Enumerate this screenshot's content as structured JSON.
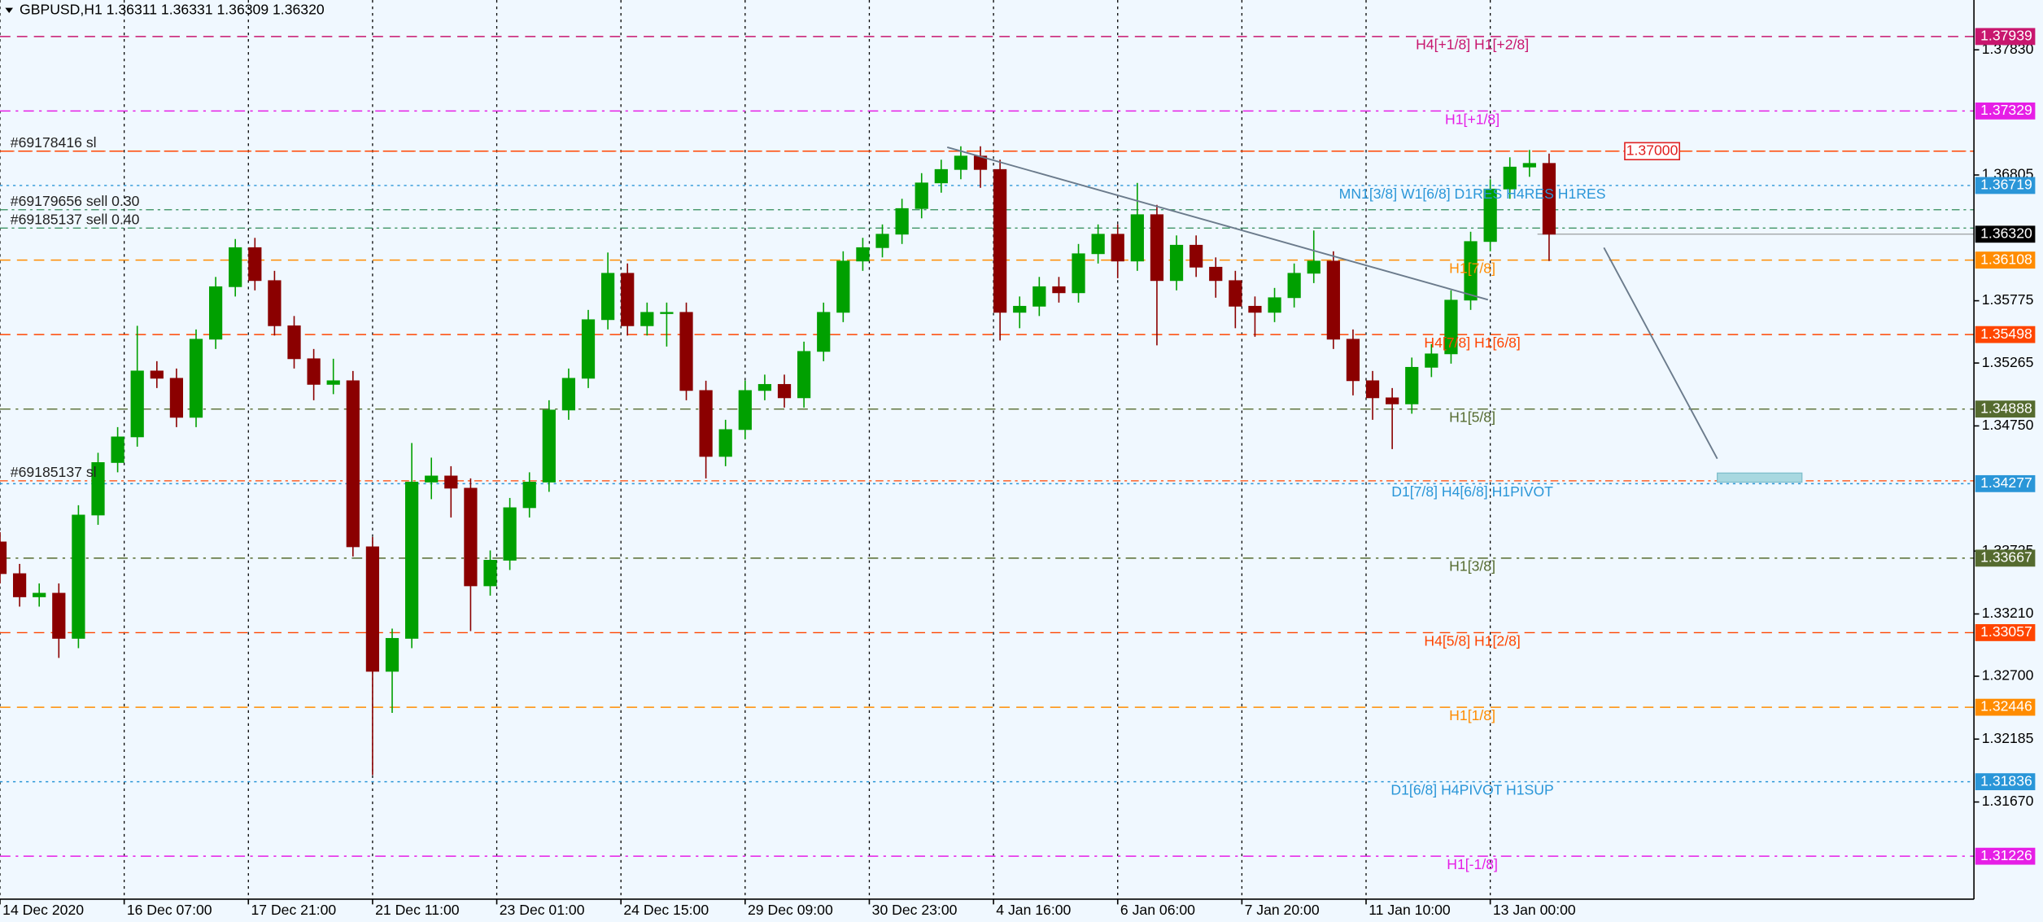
{
  "chart_data": {
    "type": "candlestick",
    "title": "GBPUSD,H1  1.36311 1.36331 1.36309 1.36320",
    "up_color": "#00a000",
    "down_color": "#8b0000",
    "x": [
      0,
      6,
      12,
      18,
      24,
      30,
      36,
      42,
      48,
      54,
      60,
      66,
      72,
      78,
      84,
      90,
      96,
      102,
      108,
      114,
      120,
      126,
      132,
      138,
      144,
      150,
      156,
      162,
      168,
      174,
      180,
      186,
      192,
      198,
      204,
      210,
      216,
      222,
      228,
      234,
      240,
      246,
      252,
      258,
      264,
      270,
      276,
      282,
      288,
      294,
      300,
      306,
      312,
      318,
      324,
      330,
      336,
      342,
      348,
      354,
      360,
      366,
      372,
      378,
      384,
      390,
      396,
      402,
      408,
      414,
      420,
      426,
      432,
      438,
      444,
      450,
      456,
      462,
      468,
      474
    ],
    "open": [
      1.338,
      1.3354,
      1.3335,
      1.3338,
      1.3301,
      1.3402,
      1.3445,
      1.3466,
      1.352,
      1.3514,
      1.3482,
      1.3546,
      1.3589,
      1.3621,
      1.3594,
      1.3557,
      1.353,
      1.3509,
      1.3512,
      1.3376,
      1.3274,
      1.3301,
      1.3429,
      1.3434,
      1.3424,
      1.3344,
      1.3365,
      1.3408,
      1.3429,
      1.3488,
      1.3514,
      1.3562,
      1.36,
      1.3557,
      1.3568,
      1.3568,
      1.3504,
      1.345,
      1.3472,
      1.3504,
      1.3509,
      1.3498,
      1.3536,
      1.3568,
      1.361,
      1.3621,
      1.3632,
      1.3653,
      1.3674,
      1.3685,
      1.3696,
      1.3685,
      1.3568,
      1.3573,
      1.3589,
      1.3584,
      1.3616,
      1.3632,
      1.361,
      1.3648,
      1.3594,
      1.3623,
      1.3605,
      1.3594,
      1.3573,
      1.3568,
      1.358,
      1.36,
      1.361,
      1.3546,
      1.3512,
      1.3498,
      1.3493,
      1.3523,
      1.3534,
      1.3578,
      1.3626,
      1.3669,
      1.3687,
      1.369
    ],
    "high": [
      1.3388,
      1.3362,
      1.3346,
      1.3346,
      1.341,
      1.3453,
      1.3474,
      1.3557,
      1.3528,
      1.3522,
      1.3554,
      1.3597,
      1.3628,
      1.3629,
      1.3602,
      1.3565,
      1.3538,
      1.353,
      1.352,
      1.3384,
      1.3309,
      1.3461,
      1.3449,
      1.3442,
      1.3432,
      1.3373,
      1.3416,
      1.3437,
      1.3496,
      1.3522,
      1.357,
      1.3617,
      1.3608,
      1.3576,
      1.3576,
      1.3576,
      1.3512,
      1.348,
      1.3512,
      1.3517,
      1.3517,
      1.3544,
      1.3576,
      1.3618,
      1.3629,
      1.364,
      1.3661,
      1.3682,
      1.3693,
      1.3704,
      1.3704,
      1.3693,
      1.3581,
      1.3597,
      1.3597,
      1.3624,
      1.364,
      1.364,
      1.3674,
      1.3656,
      1.3631,
      1.3631,
      1.3613,
      1.3602,
      1.3581,
      1.3588,
      1.3608,
      1.3635,
      1.3618,
      1.3554,
      1.352,
      1.3506,
      1.3531,
      1.3542,
      1.3586,
      1.3634,
      1.3677,
      1.3695,
      1.3701,
      1.3698
    ],
    "low": [
      1.3346,
      1.3327,
      1.3327,
      1.3285,
      1.3293,
      1.3394,
      1.3437,
      1.3458,
      1.3506,
      1.3474,
      1.3474,
      1.3538,
      1.3581,
      1.3586,
      1.3549,
      1.3522,
      1.3496,
      1.3501,
      1.3368,
      1.3189,
      1.324,
      1.3293,
      1.3415,
      1.34,
      1.3307,
      1.3336,
      1.3357,
      1.34,
      1.3421,
      1.348,
      1.3506,
      1.3554,
      1.3549,
      1.3549,
      1.354,
      1.3496,
      1.3432,
      1.3442,
      1.3464,
      1.3496,
      1.349,
      1.349,
      1.3528,
      1.356,
      1.3602,
      1.3613,
      1.3624,
      1.3645,
      1.3666,
      1.3677,
      1.367,
      1.3545,
      1.3555,
      1.3565,
      1.3576,
      1.3576,
      1.3608,
      1.3596,
      1.3602,
      1.3541,
      1.3586,
      1.3597,
      1.358,
      1.3555,
      1.3548,
      1.356,
      1.3572,
      1.3592,
      1.3538,
      1.35,
      1.348,
      1.3456,
      1.3485,
      1.3515,
      1.3526,
      1.357,
      1.3618,
      1.3661,
      1.3679,
      1.361
    ],
    "close": [
      1.3354,
      1.3335,
      1.3338,
      1.3301,
      1.3402,
      1.3445,
      1.3466,
      1.352,
      1.3514,
      1.3482,
      1.3546,
      1.3589,
      1.3621,
      1.3594,
      1.3557,
      1.353,
      1.3509,
      1.3512,
      1.3376,
      1.3274,
      1.3301,
      1.3429,
      1.3434,
      1.3424,
      1.3344,
      1.3365,
      1.3408,
      1.3429,
      1.3488,
      1.3514,
      1.3562,
      1.36,
      1.3557,
      1.3568,
      1.3568,
      1.3504,
      1.345,
      1.3472,
      1.3504,
      1.3509,
      1.3498,
      1.3536,
      1.3568,
      1.361,
      1.3621,
      1.3632,
      1.3653,
      1.3674,
      1.3685,
      1.3696,
      1.3685,
      1.3568,
      1.3573,
      1.3589,
      1.3584,
      1.3616,
      1.3632,
      1.361,
      1.3648,
      1.3594,
      1.3623,
      1.3605,
      1.3594,
      1.3573,
      1.3568,
      1.358,
      1.36,
      1.361,
      1.3546,
      1.3512,
      1.3498,
      1.3493,
      1.3523,
      1.3534,
      1.3578,
      1.3626,
      1.3669,
      1.3687,
      1.369,
      1.3632
    ],
    "xlim": [
      0,
      604
    ],
    "ylim": [
      1.30874,
      1.38238
    ],
    "xticks": [
      {
        "value": 0,
        "label": "14 Dec 2020"
      },
      {
        "value": 38,
        "label": "16 Dec 07:00"
      },
      {
        "value": 76,
        "label": "17 Dec 21:00"
      },
      {
        "value": 114,
        "label": "21 Dec 11:00"
      },
      {
        "value": 152,
        "label": "23 Dec 01:00"
      },
      {
        "value": 190,
        "label": "24 Dec 15:00"
      },
      {
        "value": 228,
        "label": "29 Dec 09:00"
      },
      {
        "value": 266,
        "label": "30 Dec 23:00"
      },
      {
        "value": 304,
        "label": "4 Jan 16:00"
      },
      {
        "value": 342,
        "label": "6 Jan 06:00"
      },
      {
        "value": 380,
        "label": "7 Jan 20:00"
      },
      {
        "value": 418,
        "label": "11 Jan 10:00"
      },
      {
        "value": 456,
        "label": "13 Jan 00:00"
      }
    ],
    "yticks": [
      {
        "value": 1.3783,
        "label": "1.37830"
      },
      1.36805,
      1.35775,
      1.35265,
      {
        "value": 1.3475,
        "label": "1.34750"
      },
      1.33725,
      {
        "value": 1.3321,
        "label": "1.33210"
      },
      {
        "value": 1.327,
        "label": "1.32700"
      },
      1.32185,
      {
        "value": 1.3167,
        "label": "1.31670"
      }
    ],
    "grid": true,
    "levels": [
      {
        "value": 1.37939,
        "name": "H4[+1/8] H1[+2/8]",
        "color": "#c8166e",
        "dash": "dash"
      },
      {
        "value": 1.37329,
        "name": "H1[+1/8]",
        "color": "#e61ee6",
        "dash": "dashdot"
      },
      {
        "value": 1.36719,
        "name": "MN1[3/8] W1[6/8] D1RES H4RES H1RES",
        "color": "#2a96d8",
        "dash": "dot"
      },
      {
        "value": 1.36108,
        "name": "H1[7/8]",
        "color": "#ff8c00",
        "dash": "dash"
      },
      {
        "value": 1.35498,
        "name": "H4[7/8] H1[6/8]",
        "color": "#ff4500",
        "dash": "dash"
      },
      {
        "value": 1.34888,
        "name": "H1[5/8]",
        "color": "#556b2f",
        "dash": "dashdot"
      },
      {
        "value": 1.34277,
        "name": "D1[7/8] H4[6/8] H1PIVOT",
        "color": "#2a96d8",
        "dash": "dot"
      },
      {
        "value": 1.33667,
        "name": "H1[3/8]",
        "color": "#556b2f",
        "dash": "dashdot"
      },
      {
        "value": 1.33057,
        "name": "H4[5/8] H1[2/8]",
        "color": "#ff4500",
        "dash": "dash"
      },
      {
        "value": 1.32446,
        "name": "H1[1/8]",
        "color": "#ff8c00",
        "dash": "dash"
      },
      {
        "value": 1.31836,
        "name": "D1[6/8] H4PIVOT H1SUP",
        "color": "#2a96d8",
        "dash": "dot"
      },
      {
        "value": 1.31226,
        "name": "H1[-1/8]",
        "color": "#e61ee6",
        "dash": "dashdot"
      }
    ],
    "current_price": {
      "value": 1.3632,
      "label": "1.36320"
    },
    "alert": {
      "value": 1.37,
      "label": "1.37000"
    },
    "orders": [
      {
        "value": 1.37,
        "label": "#69178416 sl",
        "color": "#ff4500"
      },
      {
        "value": 1.3652,
        "label": "#69179656 sell 0.30",
        "color": "#2e8b57"
      },
      {
        "value": 1.3637,
        "label": "#69185137 sell 0.40",
        "color": "#2e8b57"
      },
      {
        "value": 1.343,
        "label": "#69185137 sl",
        "color": "#ff4500"
      }
    ]
  }
}
